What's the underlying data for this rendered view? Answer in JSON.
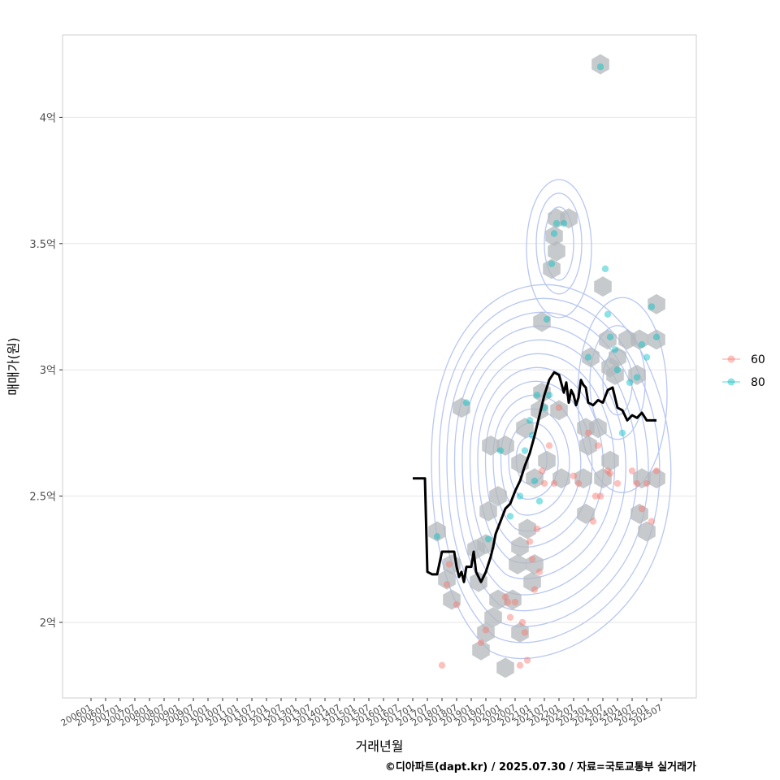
{
  "chart_data": {
    "type": "scatter",
    "xlabel": "거래년월",
    "ylabel": "매매가(원)",
    "caption": "©디아파트(dapt.kr) / 2025.07.30 / 자료=국토교통부 실거래가",
    "x_ticks": [
      "200601",
      "200607",
      "200701",
      "200707",
      "200801",
      "200807",
      "200901",
      "200907",
      "201001",
      "201007",
      "201101",
      "201107",
      "201201",
      "201207",
      "201301",
      "201307",
      "201401",
      "201407",
      "201501",
      "201507",
      "201601",
      "201607",
      "201701",
      "201707",
      "201801",
      "201807",
      "201901",
      "201907",
      "202001",
      "202007",
      "202101",
      "202107",
      "202201",
      "202207",
      "202301",
      "202307",
      "202401",
      "202407",
      "202501",
      "202507"
    ],
    "y_ticks": [
      {
        "value": 2.0,
        "label": "2억"
      },
      {
        "value": 2.5,
        "label": "2.5억"
      },
      {
        "value": 3.0,
        "label": "3억"
      },
      {
        "value": 3.5,
        "label": "3.5억"
      },
      {
        "value": 4.0,
        "label": "4억"
      }
    ],
    "x_range": [
      "200601",
      "202507"
    ],
    "ylim": [
      1.7,
      4.33
    ],
    "y_unit": "억",
    "grid": true,
    "legend_position": "right",
    "legend": [
      {
        "label": "60",
        "color": "#F8766D"
      },
      {
        "label": "80",
        "color": "#00BFC4"
      }
    ],
    "series": [
      {
        "name": "60",
        "color": "#F8766D",
        "points": [
          [
            "2018-04",
            2.23
          ],
          [
            "2018-03",
            2.15
          ],
          [
            "2018-07",
            2.07
          ],
          [
            "2018-01",
            1.83
          ],
          [
            "2019-05",
            1.92
          ],
          [
            "2019-07",
            1.97
          ],
          [
            "2020-03",
            2.1
          ],
          [
            "2020-04",
            2.08
          ],
          [
            "2020-05",
            2.02
          ],
          [
            "2020-07",
            2.08
          ],
          [
            "2020-09",
            1.83
          ],
          [
            "2020-10",
            2.0
          ],
          [
            "2020-11",
            1.96
          ],
          [
            "2020-12",
            1.85
          ],
          [
            "2021-01",
            2.32
          ],
          [
            "2021-02",
            2.25
          ],
          [
            "2021-03",
            2.13
          ],
          [
            "2021-04",
            2.37
          ],
          [
            "2021-05",
            2.2
          ],
          [
            "2021-06",
            2.6
          ],
          [
            "2021-07",
            2.55
          ],
          [
            "2021-09",
            2.7
          ],
          [
            "2021-11",
            2.55
          ],
          [
            "2022-01",
            2.85
          ],
          [
            "2022-07",
            2.58
          ],
          [
            "2022-09",
            2.55
          ],
          [
            "2023-01",
            2.75
          ],
          [
            "2023-03",
            2.4
          ],
          [
            "2023-04",
            2.5
          ],
          [
            "2023-05",
            2.7
          ],
          [
            "2023-06",
            2.5
          ],
          [
            "2023-09",
            2.6
          ],
          [
            "2023-10",
            2.59
          ],
          [
            "2024-01",
            2.55
          ],
          [
            "2024-07",
            2.6
          ],
          [
            "2024-09",
            2.55
          ],
          [
            "2024-11",
            2.45
          ],
          [
            "2025-01",
            2.55
          ],
          [
            "2025-03",
            2.4
          ],
          [
            "2025-05",
            2.6
          ]
        ]
      },
      {
        "name": "80",
        "color": "#00BFC4",
        "points": [
          [
            "2017-11",
            2.34
          ],
          [
            "2018-11",
            2.87
          ],
          [
            "2019-08",
            2.33
          ],
          [
            "2020-01",
            2.68
          ],
          [
            "2020-05",
            2.42
          ],
          [
            "2020-09",
            2.5
          ],
          [
            "2020-11",
            2.68
          ],
          [
            "2021-01",
            2.8
          ],
          [
            "2021-02",
            2.74
          ],
          [
            "2021-03",
            2.56
          ],
          [
            "2021-04",
            2.9
          ],
          [
            "2021-05",
            2.48
          ],
          [
            "2021-07",
            2.85
          ],
          [
            "2021-08",
            3.2
          ],
          [
            "2021-09",
            2.9
          ],
          [
            "2021-10",
            3.42
          ],
          [
            "2021-11",
            3.54
          ],
          [
            "2021-12",
            3.58
          ],
          [
            "2022-03",
            3.58
          ],
          [
            "2023-01",
            3.05
          ],
          [
            "2023-06",
            4.2
          ],
          [
            "2023-08",
            3.4
          ],
          [
            "2023-09",
            3.22
          ],
          [
            "2023-10",
            3.13
          ],
          [
            "2023-12",
            3.08
          ],
          [
            "2024-01",
            3.0
          ],
          [
            "2024-03",
            2.75
          ],
          [
            "2024-06",
            2.95
          ],
          [
            "2024-09",
            2.97
          ],
          [
            "2024-11",
            3.1
          ],
          [
            "2025-01",
            3.05
          ],
          [
            "2025-03",
            3.25
          ],
          [
            "2025-05",
            3.13
          ]
        ]
      }
    ],
    "trend_line": {
      "color": "#000000",
      "points": [
        [
          "2017-01",
          2.57
        ],
        [
          "2017-06",
          2.57
        ],
        [
          "2017-07",
          2.2
        ],
        [
          "2017-09",
          2.19
        ],
        [
          "2017-11",
          2.19
        ],
        [
          "2018-01",
          2.28
        ],
        [
          "2018-06",
          2.28
        ],
        [
          "2018-07",
          2.22
        ],
        [
          "2018-08",
          2.18
        ],
        [
          "2018-09",
          2.2
        ],
        [
          "2018-10",
          2.16
        ],
        [
          "2018-11",
          2.22
        ],
        [
          "2019-01",
          2.22
        ],
        [
          "2019-02",
          2.28
        ],
        [
          "2019-03",
          2.2
        ],
        [
          "2019-04",
          2.18
        ],
        [
          "2019-05",
          2.16
        ],
        [
          "2019-07",
          2.2
        ],
        [
          "2019-09",
          2.26
        ],
        [
          "2019-10",
          2.3
        ],
        [
          "2019-11",
          2.35
        ],
        [
          "2020-01",
          2.4
        ],
        [
          "2020-03",
          2.45
        ],
        [
          "2020-05",
          2.47
        ],
        [
          "2020-07",
          2.52
        ],
        [
          "2020-09",
          2.56
        ],
        [
          "2020-11",
          2.62
        ],
        [
          "2021-01",
          2.67
        ],
        [
          "2021-03",
          2.74
        ],
        [
          "2021-05",
          2.82
        ],
        [
          "2021-07",
          2.9
        ],
        [
          "2021-09",
          2.96
        ],
        [
          "2021-11",
          2.99
        ],
        [
          "2022-01",
          2.98
        ],
        [
          "2022-03",
          2.91
        ],
        [
          "2022-04",
          2.95
        ],
        [
          "2022-05",
          2.87
        ],
        [
          "2022-06",
          2.92
        ],
        [
          "2022-07",
          2.9
        ],
        [
          "2022-08",
          2.86
        ],
        [
          "2022-09",
          2.89
        ],
        [
          "2022-10",
          2.96
        ],
        [
          "2022-11",
          2.94
        ],
        [
          "2022-12",
          2.93
        ],
        [
          "2023-01",
          2.87
        ],
        [
          "2023-03",
          2.86
        ],
        [
          "2023-05",
          2.88
        ],
        [
          "2023-07",
          2.87
        ],
        [
          "2023-09",
          2.92
        ],
        [
          "2023-11",
          2.93
        ],
        [
          "2024-01",
          2.85
        ],
        [
          "2024-03",
          2.84
        ],
        [
          "2024-05",
          2.8
        ],
        [
          "2024-07",
          2.82
        ],
        [
          "2024-09",
          2.81
        ],
        [
          "2024-11",
          2.83
        ],
        [
          "2025-01",
          2.8
        ],
        [
          "2025-03",
          2.8
        ],
        [
          "2025-05",
          2.8
        ]
      ]
    },
    "hexbins": [
      [
        "2017-11",
        2.36
      ],
      [
        "2018-03",
        2.17
      ],
      [
        "2018-05",
        2.09
      ],
      [
        "2018-05",
        2.23
      ],
      [
        "2018-09",
        2.85
      ],
      [
        "2019-03",
        2.29
      ],
      [
        "2019-04",
        2.16
      ],
      [
        "2019-07",
        2.31
      ],
      [
        "2019-09",
        2.7
      ],
      [
        "2019-08",
        2.44
      ],
      [
        "2019-05",
        1.89
      ],
      [
        "2019-07",
        1.96
      ],
      [
        "2019-10",
        2.02
      ],
      [
        "2019-12",
        2.09
      ],
      [
        "2019-12",
        2.5
      ],
      [
        "2020-03",
        2.7
      ],
      [
        "2020-03",
        1.82
      ],
      [
        "2020-06",
        2.09
      ],
      [
        "2020-08",
        2.23
      ],
      [
        "2020-09",
        1.96
      ],
      [
        "2020-09",
        2.3
      ],
      [
        "2020-09",
        2.63
      ],
      [
        "2020-11",
        2.77
      ],
      [
        "2020-12",
        2.37
      ],
      [
        "2021-02",
        2.16
      ],
      [
        "2021-03",
        2.23
      ],
      [
        "2021-03",
        2.57
      ],
      [
        "2021-05",
        2.84
      ],
      [
        "2021-06",
        2.91
      ],
      [
        "2021-06",
        3.19
      ],
      [
        "2021-08",
        2.64
      ],
      [
        "2021-10",
        3.4
      ],
      [
        "2021-11",
        3.53
      ],
      [
        "2021-12",
        3.47
      ],
      [
        "2021-12",
        3.6
      ],
      [
        "2022-01",
        2.84
      ],
      [
        "2022-02",
        2.57
      ],
      [
        "2022-05",
        3.6
      ],
      [
        "2022-11",
        2.57
      ],
      [
        "2022-12",
        2.77
      ],
      [
        "2022-12",
        2.43
      ],
      [
        "2023-01",
        2.7
      ],
      [
        "2023-02",
        3.05
      ],
      [
        "2023-05",
        2.77
      ],
      [
        "2023-06",
        4.21
      ],
      [
        "2023-07",
        3.33
      ],
      [
        "2023-07",
        2.57
      ],
      [
        "2023-09",
        3.12
      ],
      [
        "2023-10",
        2.64
      ],
      [
        "2023-10",
        3.01
      ],
      [
        "2023-12",
        2.98
      ],
      [
        "2024-01",
        3.05
      ],
      [
        "2024-05",
        3.12
      ],
      [
        "2024-09",
        2.98
      ],
      [
        "2024-10",
        3.12
      ],
      [
        "2024-10",
        2.43
      ],
      [
        "2024-11",
        2.57
      ],
      [
        "2025-01",
        2.36
      ],
      [
        "2025-05",
        3.26
      ],
      [
        "2025-05",
        3.12
      ],
      [
        "2025-05",
        2.57
      ]
    ],
    "density_contours": {
      "color": "#b8c7f2",
      "center": [
        "2021-01",
        2.65
      ],
      "levels": 12
    }
  }
}
